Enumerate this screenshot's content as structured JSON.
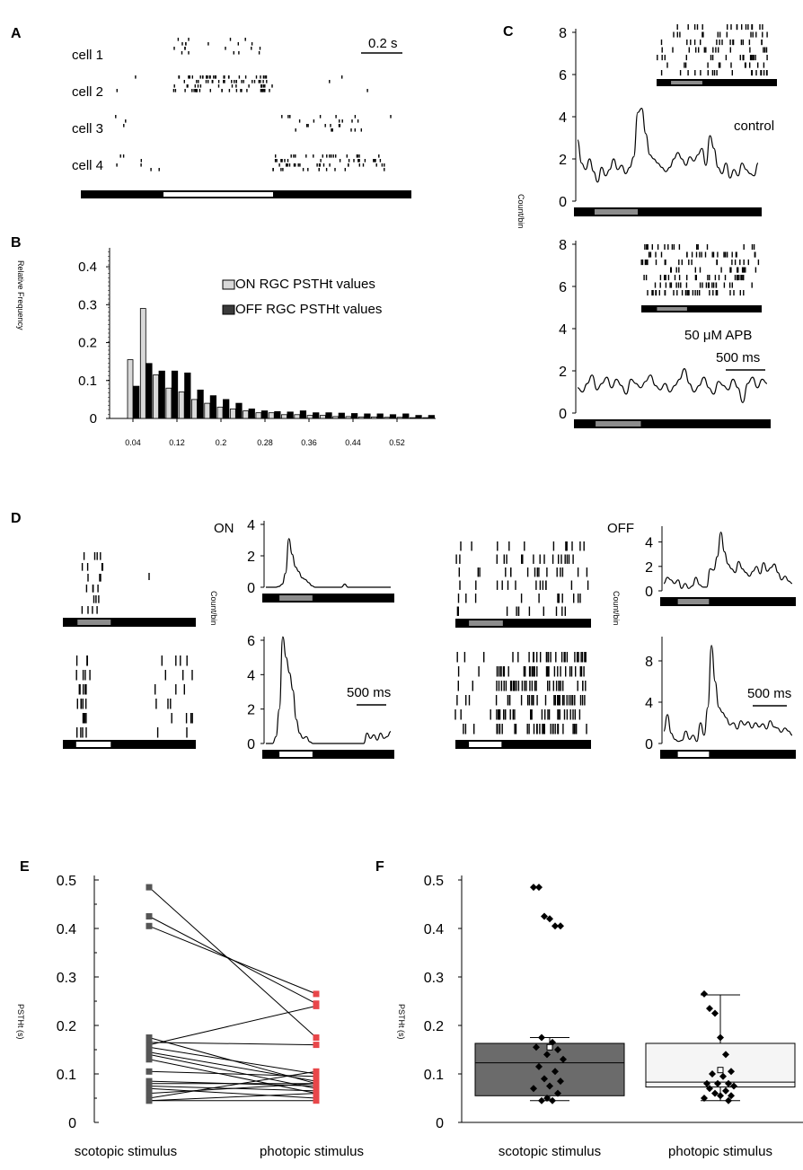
{
  "panels": {
    "a": "A",
    "b": "B",
    "c": "C",
    "d": "D",
    "e": "E",
    "f": "F"
  },
  "colors": {
    "black": "#000000",
    "gray_stim": "#8c8c8c",
    "white_stim": "#ffffff",
    "on_bar": "#d9d9d9",
    "off_bar": "#000000",
    "red": "#e8474a",
    "box_gray": "#6b6b6b",
    "box_light": "#f5f5f5"
  },
  "panel_a": {
    "cells": [
      "cell 1",
      "cell 2",
      "cell 3",
      "cell 4"
    ],
    "scale_label": "0.2 s",
    "stimulus": [
      {
        "from": 0,
        "to": 0.25,
        "shade": "black"
      },
      {
        "from": 0.25,
        "to": 0.58,
        "shade": "white"
      },
      {
        "from": 0.58,
        "to": 1,
        "shade": "black"
      }
    ]
  },
  "chart_data": [
    {
      "id": "B",
      "type": "bar",
      "title": "",
      "ylabel": "Relative Frequency",
      "xlabel": "",
      "ylim": [
        0,
        0.45
      ],
      "yticks": [
        "0",
        "0.1",
        "0.2",
        "0.3",
        "0.4"
      ],
      "xticks": [
        "0.04",
        "0.12",
        "0.2",
        "0.28",
        "0.36",
        "0.44",
        "0.52"
      ],
      "legend": [
        "ON RGC PSTHt values",
        "OFF RGC PSTHt values"
      ],
      "series": [
        {
          "name": "ON RGC PSTHt values",
          "values": [
            0.155,
            0.29,
            0.115,
            0.08,
            0.07,
            0.05,
            0.04,
            0.03,
            0.025,
            0.02,
            0.015,
            0.015,
            0.01,
            0.01,
            0.008,
            0.008,
            0.005,
            0.005,
            0.004,
            0.004,
            0.003,
            0.003,
            0.002,
            0.002
          ]
        },
        {
          "name": "OFF RGC PSTHt values",
          "values": [
            0.085,
            0.145,
            0.125,
            0.125,
            0.12,
            0.075,
            0.06,
            0.05,
            0.04,
            0.025,
            0.02,
            0.018,
            0.017,
            0.02,
            0.015,
            0.015,
            0.014,
            0.013,
            0.012,
            0.012,
            0.01,
            0.012,
            0.008,
            0.008
          ]
        }
      ]
    },
    {
      "id": "C-control",
      "type": "line",
      "ylabel": "Count/bin",
      "annotation": "control",
      "ylim": [
        0,
        8
      ],
      "yticks": [
        "0",
        "2",
        "4",
        "6",
        "8"
      ],
      "values": [
        2.9,
        1.8,
        1.5,
        2.0,
        1.4,
        0.9,
        1.6,
        1.2,
        1.5,
        2.0,
        1.5,
        1.7,
        1.3,
        1.6,
        2.1,
        4.2,
        4.4,
        3.2,
        2.2,
        2.0,
        1.8,
        1.6,
        1.4,
        1.6,
        2.0,
        2.3,
        2.0,
        1.7,
        2.1,
        1.9,
        2.2,
        2.5,
        1.7,
        3.1,
        2.5,
        1.6,
        1.3,
        1.8,
        1.1,
        1.5,
        1.2,
        1.8,
        1.5,
        1.3,
        1.2,
        1.8
      ]
    },
    {
      "id": "C-APB",
      "type": "line",
      "ylabel": "Count/bin",
      "annotation": "50 μM APB",
      "scale_label": "500 ms",
      "ylim": [
        0,
        8
      ],
      "yticks": [
        "0",
        "2",
        "4",
        "6",
        "8"
      ],
      "values": [
        1.2,
        1.0,
        1.4,
        1.8,
        1.1,
        1.4,
        1.7,
        1.2,
        1.6,
        1.3,
        0.9,
        1.6,
        1.4,
        1.2,
        1.5,
        1.8,
        1.3,
        1.1,
        1.4,
        1.0,
        1.3,
        1.6,
        2.1,
        1.4,
        1.0,
        1.3,
        1.7,
        1.2,
        0.9,
        1.5,
        1.3,
        1.1,
        1.6,
        1.2,
        0.5,
        1.4,
        1.7,
        1.2,
        1.6,
        1.4
      ]
    },
    {
      "id": "D-ON-scotopic",
      "type": "line",
      "ylabel": "Count/bin",
      "ylim": [
        0,
        4
      ],
      "yticks": [
        "0",
        "2",
        "4"
      ],
      "values": [
        0,
        0,
        0,
        0,
        0.05,
        0.2,
        0.9,
        3.1,
        2.1,
        1.3,
        1.0,
        0.6,
        0.5,
        0.3,
        0.1,
        0,
        0,
        0,
        0,
        0,
        0,
        0,
        0,
        0,
        0.2,
        0,
        0,
        0,
        0,
        0,
        0,
        0,
        0,
        0,
        0,
        0,
        0,
        0,
        0
      ]
    },
    {
      "id": "D-ON-photopic",
      "type": "line",
      "ylabel": "Count/bin",
      "ylim": [
        0,
        6
      ],
      "yticks": [
        "0",
        "2",
        "4",
        "6"
      ],
      "scale_label": "500 ms",
      "values": [
        0,
        0,
        0,
        0.4,
        2.0,
        6.2,
        5.0,
        4.1,
        3.1,
        1.4,
        0.6,
        0.3,
        0.4,
        0.1,
        0,
        0,
        0,
        0,
        0,
        0,
        0,
        0,
        0,
        0,
        0,
        0,
        0,
        0,
        0,
        0,
        0.6,
        0.3,
        0.5,
        0.2,
        0.6,
        0.3,
        0.4,
        0.7
      ]
    },
    {
      "id": "D-OFF-scotopic",
      "type": "line",
      "ylabel": "Count/bin",
      "ylim": [
        0,
        5
      ],
      "yticks": [
        "0",
        "2",
        "4"
      ],
      "values": [
        0.6,
        1.1,
        0.9,
        0.6,
        0.9,
        0.2,
        0.6,
        0.2,
        0.4,
        1.1,
        0.5,
        0.3,
        0.3,
        1.8,
        1.7,
        2.8,
        4.8,
        3.2,
        2.2,
        1.8,
        1.5,
        2.4,
        1.8,
        1.5,
        1.2,
        1.6,
        2.0,
        1.4,
        2.3,
        1.6,
        1.9,
        2.2,
        1.5,
        0.9,
        1.2,
        0.8,
        0.6
      ]
    },
    {
      "id": "D-OFF-photopic",
      "type": "line",
      "ylabel": "Count/bin",
      "ylim": [
        0,
        10
      ],
      "yticks": [
        "0",
        "4",
        "8"
      ],
      "scale_label": "500 ms",
      "values": [
        1.2,
        2.8,
        1.0,
        0.4,
        0.2,
        0.3,
        1.2,
        0.4,
        0.8,
        0.2,
        2.0,
        0.8,
        3.5,
        9.5,
        6.0,
        3.5,
        3.0,
        2.5,
        1.8,
        2.0,
        1.4,
        2.2,
        1.8,
        2.1,
        1.5,
        2.0,
        1.6,
        1.9,
        1.4,
        2.2,
        1.6,
        1.5,
        1.1,
        1.5,
        1.2,
        0.8
      ]
    },
    {
      "id": "E",
      "type": "line",
      "ylabel": "PSTHt (s)",
      "ylim": [
        0,
        0.5
      ],
      "yticks": [
        "0",
        "0.1",
        "0.2",
        "0.3",
        "0.4",
        "0.5"
      ],
      "categories": [
        "scotopic stimulus",
        "photopic stimulus"
      ],
      "pairs": [
        [
          0.485,
          0.175
        ],
        [
          0.425,
          0.245
        ],
        [
          0.405,
          0.265
        ],
        [
          0.175,
          0.08
        ],
        [
          0.165,
          0.16
        ],
        [
          0.16,
          0.24
        ],
        [
          0.155,
          0.1
        ],
        [
          0.145,
          0.085
        ],
        [
          0.14,
          0.07
        ],
        [
          0.13,
          0.06
        ],
        [
          0.105,
          0.095
        ],
        [
          0.085,
          0.075
        ],
        [
          0.08,
          0.08
        ],
        [
          0.075,
          0.065
        ],
        [
          0.07,
          0.05
        ],
        [
          0.06,
          0.08
        ],
        [
          0.05,
          0.105
        ],
        [
          0.045,
          0.06
        ],
        [
          0.045,
          0.045
        ]
      ]
    },
    {
      "id": "F",
      "type": "scatter",
      "ylabel": "PSTHt (s)",
      "ylim": [
        0,
        0.5
      ],
      "yticks": [
        "0",
        "0.1",
        "0.2",
        "0.3",
        "0.4",
        "0.5"
      ],
      "categories": [
        "scotopic stimulus",
        "photopic stimulus"
      ],
      "boxes": [
        {
          "name": "scotopic stimulus",
          "q1": 0.055,
          "median": 0.123,
          "q3": 0.163,
          "whisker_low": 0.045,
          "whisker_high": 0.175,
          "mean": 0.155
        },
        {
          "name": "photopic stimulus",
          "q1": 0.073,
          "median": 0.083,
          "q3": 0.163,
          "whisker_low": 0.045,
          "whisker_high": 0.263,
          "mean": 0.108
        }
      ],
      "points": [
        {
          "group": 0,
          "values": [
            0.485,
            0.485,
            0.425,
            0.42,
            0.405,
            0.405,
            0.175,
            0.165,
            0.155,
            0.15,
            0.14,
            0.13,
            0.115,
            0.105,
            0.09,
            0.085,
            0.075,
            0.07,
            0.06,
            0.05,
            0.045,
            0.045
          ]
        },
        {
          "group": 1,
          "values": [
            0.265,
            0.235,
            0.225,
            0.175,
            0.14,
            0.105,
            0.1,
            0.095,
            0.08,
            0.08,
            0.08,
            0.075,
            0.07,
            0.065,
            0.06,
            0.055,
            0.055,
            0.05,
            0.045
          ]
        }
      ]
    }
  ]
}
